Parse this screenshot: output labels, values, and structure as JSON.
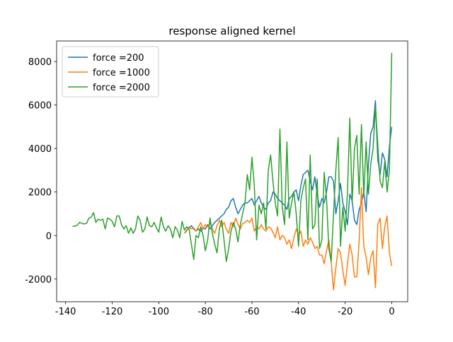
{
  "chart_data": {
    "type": "line",
    "title": "response aligned kernel",
    "xlim": [
      -143.85,
      6.85
    ],
    "ylim": [
      -3045,
      8945
    ],
    "xticks": [
      -140,
      -120,
      -100,
      -80,
      -60,
      -40,
      -20,
      0
    ],
    "yticks": [
      -2000,
      0,
      2000,
      4000,
      6000,
      8000
    ],
    "legend": "upper left",
    "series": [
      {
        "name": "force =200",
        "color": "#1f77b4",
        "x": [
          -89,
          -88,
          -87,
          -86,
          -85,
          -84,
          -83,
          -82,
          -81,
          -80,
          -79,
          -78,
          -77,
          -76,
          -75,
          -74,
          -73,
          -72,
          -71,
          -70,
          -69,
          -68,
          -67,
          -66,
          -65,
          -64,
          -63,
          -62,
          -61,
          -60,
          -59,
          -58,
          -57,
          -56,
          -55,
          -54,
          -53,
          -52,
          -51,
          -50,
          -49,
          -48,
          -47,
          -46,
          -45,
          -44,
          -43,
          -42,
          -41,
          -40,
          -39,
          -38,
          -37,
          -36,
          -35,
          -34,
          -33,
          -32,
          -31,
          -30,
          -29,
          -28,
          -27,
          -26,
          -25,
          -24,
          -23,
          -22,
          -21,
          -20,
          -19,
          -18,
          -17,
          -16,
          -15,
          -14,
          -13,
          -12,
          -11,
          -10,
          -9,
          -8,
          -7,
          -6,
          -5,
          -4,
          -3,
          -2,
          -1,
          0
        ],
        "values": [
          100,
          250,
          350,
          450,
          300,
          200,
          300,
          200,
          350,
          300,
          500,
          300,
          450,
          600,
          700,
          800,
          900,
          1000,
          1200,
          1300,
          1600,
          1700,
          1300,
          1000,
          1200,
          1400,
          1500,
          1500,
          1600,
          1700,
          1400,
          1600,
          1800,
          1500,
          1300,
          1200,
          1500,
          1600,
          2000,
          1900,
          1700,
          1600,
          1500,
          1400,
          1200,
          1700,
          1800,
          2000,
          2100,
          1600,
          2300,
          2800,
          2900,
          3000,
          2500,
          2100,
          2700,
          1900,
          1300,
          1700,
          1500,
          2000,
          2700,
          2700,
          2500,
          1000,
          1600,
          2400,
          1500,
          1100,
          500,
          1900,
          1600,
          700,
          500,
          1200,
          1500,
          2000,
          1100,
          3300,
          4700,
          5000,
          6200,
          3500,
          2800,
          3800,
          3500,
          2700,
          4100,
          5000
        ]
      },
      {
        "name": "force =1000",
        "color": "#ff7f0e",
        "x": [
          -89,
          -88,
          -87,
          -86,
          -85,
          -84,
          -83,
          -82,
          -81,
          -80,
          -79,
          -78,
          -77,
          -76,
          -75,
          -74,
          -73,
          -72,
          -71,
          -70,
          -69,
          -68,
          -67,
          -66,
          -65,
          -64,
          -63,
          -62,
          -61,
          -60,
          -59,
          -58,
          -57,
          -56,
          -55,
          -54,
          -53,
          -52,
          -51,
          -50,
          -49,
          -48,
          -47,
          -46,
          -45,
          -44,
          -43,
          -42,
          -41,
          -40,
          -39,
          -38,
          -37,
          -36,
          -35,
          -34,
          -33,
          -32,
          -31,
          -30,
          -29,
          -28,
          -27,
          -26,
          -25,
          -24,
          -23,
          -22,
          -21,
          -20,
          -19,
          -18,
          -17,
          -16,
          -15,
          -14,
          -13,
          -12,
          -11,
          -10,
          -9,
          -8,
          -7,
          -6,
          -5,
          -4,
          -3,
          -2,
          -1,
          0
        ],
        "values": [
          100,
          200,
          400,
          300,
          350,
          200,
          400,
          600,
          300,
          500,
          400,
          600,
          300,
          100,
          450,
          700,
          400,
          600,
          300,
          100,
          600,
          400,
          800,
          500,
          300,
          550,
          600,
          700,
          600,
          800,
          200,
          400,
          300,
          500,
          300,
          200,
          400,
          350,
          150,
          -100,
          400,
          -200,
          0,
          -100,
          -400,
          -200,
          -600,
          -100,
          300,
          50,
          200,
          -500,
          -200,
          -400,
          -100,
          -300,
          -600,
          -500,
          -900,
          -900,
          -1300,
          -700,
          -200,
          -1200,
          -2500,
          -1500,
          -600,
          -800,
          -1600,
          -2300,
          -1300,
          -400,
          -900,
          -1900,
          -1900,
          -300,
          2200,
          -500,
          -1000,
          -1800,
          -1000,
          -700,
          -2400,
          500,
          800,
          -600,
          400,
          900,
          -800,
          -1400
        ]
      },
      {
        "name": "force =2000",
        "color": "#2ca02c",
        "x": [
          -137,
          -136,
          -135,
          -134,
          -133,
          -132,
          -131,
          -130,
          -129,
          -128,
          -127,
          -126,
          -125,
          -124,
          -123,
          -122,
          -121,
          -120,
          -119,
          -118,
          -117,
          -116,
          -115,
          -114,
          -113,
          -112,
          -111,
          -110,
          -109,
          -108,
          -107,
          -106,
          -105,
          -104,
          -103,
          -102,
          -101,
          -100,
          -99,
          -98,
          -97,
          -96,
          -95,
          -94,
          -93,
          -92,
          -91,
          -90,
          -89,
          -88,
          -87,
          -86,
          -85,
          -84,
          -83,
          -82,
          -81,
          -80,
          -79,
          -78,
          -77,
          -76,
          -75,
          -74,
          -73,
          -72,
          -71,
          -70,
          -69,
          -68,
          -67,
          -66,
          -65,
          -64,
          -63,
          -62,
          -61,
          -60,
          -59,
          -58,
          -57,
          -56,
          -55,
          -54,
          -53,
          -52,
          -51,
          -50,
          -49,
          -48,
          -47,
          -46,
          -45,
          -44,
          -43,
          -42,
          -41,
          -40,
          -39,
          -38,
          -37,
          -36,
          -35,
          -34,
          -33,
          -32,
          -31,
          -30,
          -29,
          -28,
          -27,
          -26,
          -25,
          -24,
          -23,
          -22,
          -21,
          -20,
          -19,
          -18,
          -17,
          -16,
          -15,
          -14,
          -13,
          -12,
          -11,
          -10,
          -9,
          -8,
          -7,
          -6,
          -5,
          -4,
          -3,
          -2,
          -1,
          0
        ],
        "values": [
          420,
          430,
          480,
          600,
          560,
          530,
          560,
          800,
          850,
          1050,
          600,
          750,
          700,
          750,
          300,
          800,
          750,
          650,
          400,
          900,
          900,
          500,
          300,
          450,
          100,
          350,
          100,
          300,
          900,
          700,
          150,
          300,
          850,
          450,
          400,
          600,
          350,
          150,
          850,
          400,
          200,
          450,
          300,
          -100,
          400,
          250,
          -100,
          650,
          250,
          400,
          300,
          -400,
          -1100,
          0,
          -100,
          400,
          0,
          -700,
          -200,
          800,
          100,
          -400,
          -800,
          300,
          700,
          -200,
          -1200,
          -600,
          200,
          600,
          300,
          -300,
          500,
          1000,
          1500,
          2800,
          2100,
          3600,
          2300,
          -200,
          1400,
          1000,
          1500,
          300,
          3000,
          3700,
          2500,
          1500,
          900,
          4900,
          1300,
          500,
          4300,
          800,
          1500,
          2000,
          1000,
          -500,
          1600,
          2200,
          2600,
          -200,
          3700,
          300,
          500,
          2600,
          -600,
          -200,
          2900,
          1700,
          -600,
          -1200,
          1000,
          3000,
          4500,
          -500,
          1300,
          200,
          2000,
          5400,
          1500,
          4000,
          4600,
          1900,
          5100,
          1800,
          4300,
          1900,
          3300,
          4000,
          5900,
          4200,
          2500,
          2200,
          3400,
          2000,
          3000,
          8400
        ]
      }
    ]
  }
}
